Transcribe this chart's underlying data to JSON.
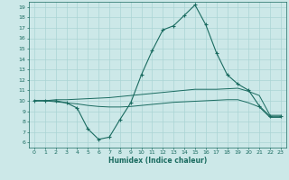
{
  "xlabel": "Humidex (Indice chaleur)",
  "ylabel": "",
  "bg_color": "#cce8e8",
  "line_color": "#1a6b60",
  "grid_color": "#aad4d4",
  "xticks": [
    0,
    1,
    2,
    3,
    4,
    5,
    6,
    7,
    8,
    9,
    10,
    11,
    12,
    13,
    14,
    15,
    16,
    17,
    18,
    19,
    20,
    21,
    22,
    23
  ],
  "yticks": [
    6,
    7,
    8,
    9,
    10,
    11,
    12,
    13,
    14,
    15,
    16,
    17,
    18,
    19
  ],
  "xlim": [
    -0.5,
    23.5
  ],
  "ylim": [
    5.5,
    19.5
  ],
  "main_x": [
    0,
    1,
    2,
    3,
    4,
    5,
    6,
    7,
    8,
    9,
    10,
    11,
    12,
    13,
    14,
    15,
    16,
    17,
    18,
    19,
    20,
    21,
    22,
    23
  ],
  "main_y": [
    10,
    10,
    10,
    9.8,
    9.3,
    7.3,
    6.3,
    6.5,
    8.2,
    9.8,
    12.5,
    14.8,
    16.8,
    17.2,
    18.2,
    19.2,
    17.3,
    14.6,
    12.5,
    11.6,
    11.0,
    9.5,
    8.5,
    8.5
  ],
  "upper_x": [
    0,
    1,
    2,
    3,
    4,
    5,
    6,
    7,
    8,
    9,
    10,
    11,
    12,
    13,
    14,
    15,
    16,
    17,
    18,
    19,
    20,
    21,
    22,
    23
  ],
  "upper_y": [
    10.0,
    10.0,
    10.1,
    10.1,
    10.15,
    10.2,
    10.25,
    10.3,
    10.4,
    10.5,
    10.6,
    10.7,
    10.8,
    10.9,
    11.0,
    11.1,
    11.1,
    11.1,
    11.15,
    11.2,
    10.9,
    10.5,
    8.6,
    8.6
  ],
  "lower_x": [
    0,
    1,
    2,
    3,
    4,
    5,
    6,
    7,
    8,
    9,
    10,
    11,
    12,
    13,
    14,
    15,
    16,
    17,
    18,
    19,
    20,
    21,
    22,
    23
  ],
  "lower_y": [
    10.0,
    10.0,
    9.9,
    9.8,
    9.7,
    9.55,
    9.45,
    9.4,
    9.4,
    9.45,
    9.55,
    9.65,
    9.75,
    9.85,
    9.9,
    9.95,
    10.0,
    10.05,
    10.1,
    10.1,
    9.8,
    9.4,
    8.4,
    8.4
  ]
}
